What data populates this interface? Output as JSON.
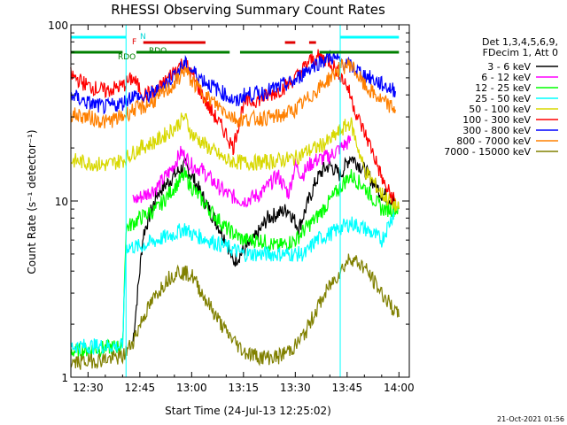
{
  "chart_data": {
    "type": "line",
    "title": "RHESSI Observing Summary Count Rates",
    "xlabel": "Start Time (24-Jul-13 12:25:02)",
    "ylabel": "Count Rate (s⁻¹ detector⁻¹)",
    "y_scale": "log",
    "ylim": [
      1,
      100
    ],
    "xlim": [
      "12:25:02",
      "14:03:00"
    ],
    "x_tick_labels": [
      "12:30",
      "12:45",
      "13:00",
      "13:15",
      "13:30",
      "13:45",
      "14:00"
    ],
    "y_tick_labels": [
      "1",
      "10",
      "100"
    ],
    "legend_position": "right",
    "legend_header": [
      "Det 1,3,4,5,6,9,",
      "FDecim 1, Att 0"
    ],
    "series": [
      {
        "name": "3 - 6 keV",
        "color": "#000000",
        "x": [
          "12:43",
          "12:46",
          "12:50",
          "12:55",
          "12:58",
          "13:00",
          "13:05",
          "13:10",
          "13:12",
          "13:18",
          "13:22",
          "13:25",
          "13:28",
          "13:31",
          "13:33",
          "13:36",
          "13:38",
          "13:40",
          "13:43",
          "13:46",
          "13:50",
          "13:55",
          "13:59"
        ],
        "values": [
          1.6,
          6.5,
          11,
          14,
          16,
          14,
          9,
          6,
          4.5,
          6,
          8,
          8.5,
          9,
          7,
          9,
          13,
          15,
          16,
          14,
          18,
          15,
          11,
          10
        ]
      },
      {
        "name": "6 - 12 keV",
        "color": "#ff00ff",
        "x": [
          "12:43",
          "12:47",
          "12:50",
          "12:54",
          "12:57",
          "13:00",
          "13:03",
          "13:06",
          "13:10",
          "13:15",
          "13:20",
          "13:25",
          "13:28",
          "13:30",
          "13:32",
          "13:34",
          "13:36",
          "13:40",
          "13:43",
          "13:46"
        ],
        "values": [
          10,
          11,
          12,
          15,
          19,
          16,
          15,
          13,
          11,
          10,
          11,
          14,
          11,
          16,
          14,
          16,
          17,
          18,
          20,
          22
        ]
      },
      {
        "name": "12 - 25 keV",
        "color": "#00ff00",
        "x": [
          "12:25",
          "12:40",
          "12:41",
          "12:45",
          "12:50",
          "12:55",
          "12:58",
          "13:00",
          "13:05",
          "13:10",
          "13:15",
          "13:20",
          "13:25",
          "13:30",
          "13:33",
          "13:36",
          "13:40",
          "13:43",
          "13:46",
          "13:50",
          "13:55",
          "14:00"
        ],
        "values": [
          1.4,
          1.5,
          7,
          8,
          9,
          12,
          14,
          12,
          9,
          7,
          6,
          6,
          5.5,
          6,
          7,
          8,
          10,
          12,
          14,
          12,
          9,
          9
        ]
      },
      {
        "name": "25 - 50 keV",
        "color": "#00ffff",
        "x": [
          "12:25",
          "12:40",
          "12:41",
          "12:45",
          "12:50",
          "12:55",
          "12:58",
          "13:00",
          "13:05",
          "13:10",
          "13:15",
          "13:20",
          "13:25",
          "13:30",
          "13:33",
          "13:36",
          "13:40",
          "13:43",
          "13:46",
          "13:50",
          "13:55",
          "13:59"
        ],
        "values": [
          1.5,
          1.5,
          5.5,
          5.5,
          6,
          6.5,
          7,
          6.5,
          6,
          5.5,
          5,
          5,
          5,
          5,
          5,
          6,
          6.5,
          7,
          7.5,
          7,
          6,
          9
        ]
      },
      {
        "name": "50 - 100 keV",
        "color": "#d8d800",
        "x": [
          "12:25",
          "12:30",
          "12:35",
          "12:40",
          "12:45",
          "12:50",
          "12:55",
          "12:58",
          "13:00",
          "13:05",
          "13:10",
          "13:15",
          "13:20",
          "13:25",
          "13:30",
          "13:33",
          "13:36",
          "13:40",
          "13:43",
          "13:46",
          "13:50",
          "13:55",
          "14:00"
        ],
        "values": [
          17,
          16.5,
          16,
          17,
          20,
          22,
          26,
          30,
          24,
          20,
          17,
          16.5,
          16.5,
          17,
          17.5,
          19,
          20,
          22,
          25,
          28,
          15,
          11,
          9
        ]
      },
      {
        "name": "100 - 300 keV",
        "color": "#ff0000",
        "x": [
          "12:25",
          "12:30",
          "12:35",
          "12:40",
          "12:43",
          "12:46",
          "12:50",
          "12:55",
          "12:58",
          "13:00",
          "13:05",
          "13:10",
          "13:12",
          "13:15",
          "13:20",
          "13:25",
          "13:28",
          "13:31",
          "13:34",
          "13:37",
          "13:40",
          "13:43",
          "13:45",
          "13:48",
          "13:52",
          "13:56",
          "13:59"
        ],
        "values": [
          52,
          45,
          42,
          45,
          50,
          40,
          42,
          55,
          62,
          52,
          34,
          24,
          20,
          36,
          38,
          42,
          46,
          52,
          62,
          66,
          62,
          52,
          45,
          30,
          20,
          12,
          10
        ]
      },
      {
        "name": "300 - 800 keV",
        "color": "#0000ff",
        "x": [
          "12:25",
          "12:30",
          "12:35",
          "12:40",
          "12:43",
          "12:46",
          "12:50",
          "12:55",
          "12:58",
          "13:00",
          "13:05",
          "13:10",
          "13:13",
          "13:15",
          "13:20",
          "13:25",
          "13:30",
          "13:33",
          "13:36",
          "13:40",
          "13:43",
          "13:46",
          "13:50",
          "13:55",
          "13:59"
        ],
        "values": [
          40,
          36,
          34,
          36,
          40,
          38,
          42,
          52,
          60,
          55,
          46,
          40,
          36,
          40,
          41,
          44,
          48,
          55,
          60,
          66,
          62,
          58,
          52,
          46,
          42
        ]
      },
      {
        "name": "800 - 7000 keV",
        "color": "#ff8000",
        "x": [
          "12:25",
          "12:30",
          "12:35",
          "12:40",
          "12:43",
          "12:46",
          "12:50",
          "12:55",
          "12:58",
          "13:00",
          "13:05",
          "13:10",
          "13:13",
          "13:15",
          "13:20",
          "13:25",
          "13:30",
          "13:33",
          "13:36",
          "13:40",
          "13:43",
          "13:46",
          "13:50",
          "13:55",
          "13:59"
        ],
        "values": [
          31,
          30,
          28,
          30,
          33,
          34,
          38,
          46,
          56,
          48,
          38,
          32,
          29,
          29,
          29.5,
          30,
          33,
          37,
          42,
          50,
          57,
          60,
          45,
          37,
          33
        ]
      },
      {
        "name": "7000 - 15000 keV",
        "color": "#808000",
        "x": [
          "12:25",
          "12:40",
          "12:43",
          "12:46",
          "12:50",
          "12:53",
          "12:56",
          "13:00",
          "13:03",
          "13:06",
          "13:10",
          "13:15",
          "13:20",
          "13:25",
          "13:30",
          "13:33",
          "13:36",
          "13:40",
          "13:43",
          "13:46",
          "13:50",
          "13:55",
          "14:00"
        ],
        "values": [
          1.2,
          1.3,
          1.6,
          2.2,
          3,
          3.6,
          4,
          3.8,
          3,
          2.4,
          1.8,
          1.4,
          1.3,
          1.3,
          1.5,
          1.8,
          2.4,
          3.3,
          4,
          4.8,
          4.2,
          3,
          2.2
        ]
      }
    ],
    "flag_labels": [
      "N",
      "F",
      "RDO",
      "RDO"
    ],
    "flag_bars": [
      {
        "name": "N",
        "color": "#00ffff",
        "start": "12:25",
        "end": "12:41"
      },
      {
        "name": "N",
        "color": "#00ffff",
        "start": "13:43",
        "end": "14:00"
      },
      {
        "name": "F",
        "color": "#e00000",
        "start": "12:46",
        "end": "13:04"
      },
      {
        "name": "F",
        "color": "#e00000",
        "start": "13:27",
        "end": "13:30"
      },
      {
        "name": "F",
        "color": "#e00000",
        "start": "13:34",
        "end": "13:36"
      },
      {
        "name": "RDO",
        "color": "#008000",
        "start": "12:25",
        "end": "12:40"
      },
      {
        "name": "RDO",
        "color": "#008000",
        "start": "12:44",
        "end": "13:11"
      },
      {
        "name": "RDO",
        "color": "#008000",
        "start": "13:14",
        "end": "13:35"
      },
      {
        "name": "RDO",
        "color": "#008000",
        "start": "13:37",
        "end": "14:00"
      }
    ],
    "vertical_markers": [
      {
        "color": "#00ffff",
        "time": "12:41"
      },
      {
        "color": "#00ffff",
        "time": "13:43"
      }
    ],
    "grid": false
  },
  "footer": {
    "timestamp": "21-Oct-2021 01:56"
  }
}
